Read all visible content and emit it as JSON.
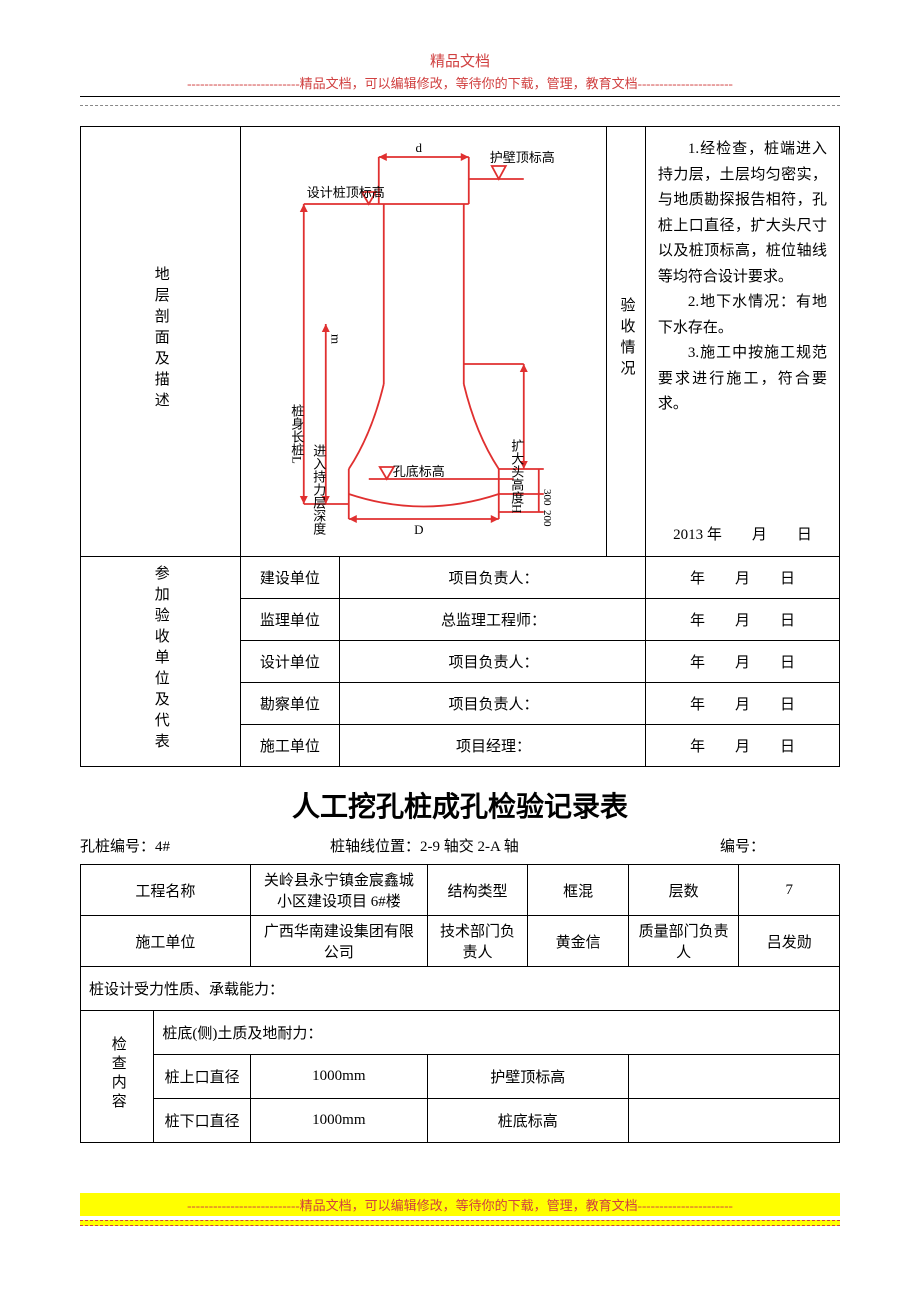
{
  "header": {
    "line1": "精品文档",
    "line2": "--------------------------精品文档，可以编辑修改，等待你的下载，管理，教育文档----------------------"
  },
  "top_section": {
    "left_label": "地层剖面及描述",
    "insp_label": "验收情况",
    "insp_text": [
      "1.经检查，桩端进入持力层，土层均匀密实，与地质勘探报告相符，孔桩上口直径，扩大头尺寸以及桩顶标高，桩位轴线等均符合设计要求。",
      "2.地下水情况：有地下水存在。",
      "3.施工中按施工规范要求进行施工，符合要求。"
    ],
    "insp_date": "2013 年　　月　　日"
  },
  "diagram": {
    "stroke_color": "#e03030",
    "text_color": "#000000",
    "labels": {
      "top_d": "d",
      "wall_top": "护壁顶标高",
      "design_top": "设计桩顶标高",
      "pile_len": "桩身长桩L",
      "enter_depth": "进入持力层深度",
      "unit_m": "m",
      "hole_bottom": "孔底标高",
      "bottom_D": "D",
      "enlarge_H": "扩大头高度H",
      "h300": "300",
      "h200": "200"
    }
  },
  "participants": {
    "rowspan_label": "参加验收单位及代表",
    "rows": [
      {
        "unit": "建设单位",
        "role": "项目负责人：",
        "date": "年　　月　　日"
      },
      {
        "unit": "监理单位",
        "role": "总监理工程师：",
        "date": "年　　月　　日"
      },
      {
        "unit": "设计单位",
        "role": "项目负责人：",
        "date": "年　　月　　日"
      },
      {
        "unit": "勘察单位",
        "role": "项目负责人：",
        "date": "年　　月　　日"
      },
      {
        "unit": "施工单位",
        "role": "项目经理：",
        "date": "年　　月　　日"
      }
    ]
  },
  "title2": "人工挖孔桩成孔检验记录表",
  "subheader": {
    "pile_no_label": "孔桩编号：",
    "pile_no": "4#",
    "axis_label": "桩轴线位置：",
    "axis": "2-9 轴交 2-A 轴",
    "serial_label": "编号：",
    "serial": ""
  },
  "info": {
    "project_label": "工程名称",
    "project": "关岭县永宁镇金宸鑫城小区建设项目 6#楼",
    "struct_label": "结构类型",
    "struct": "框混",
    "floors_label": "层数",
    "floors": "7",
    "contractor_label": "施工单位",
    "contractor": "广西华南建设集团有限公司",
    "tech_label": "技术部门负责人",
    "tech": "黄金信",
    "qc_label": "质量部门负责人",
    "qc": "吕发勋",
    "design_row": "桩设计受力性质、承载能力：",
    "check_label": "检查内容",
    "soil_row": "桩底(侧)土质及地耐力：",
    "upper_dia_label": "桩上口直径",
    "upper_dia": "1000mm",
    "wall_top_label": "护壁顶标高",
    "wall_top": "",
    "lower_dia_label": "桩下口直径",
    "lower_dia": "1000mm",
    "hole_bottom_label": "桩底标高",
    "hole_bottom": ""
  },
  "footer": {
    "line": "--------------------------精品文档，可以编辑修改，等待你的下载，管理，教育文档----------------------"
  }
}
